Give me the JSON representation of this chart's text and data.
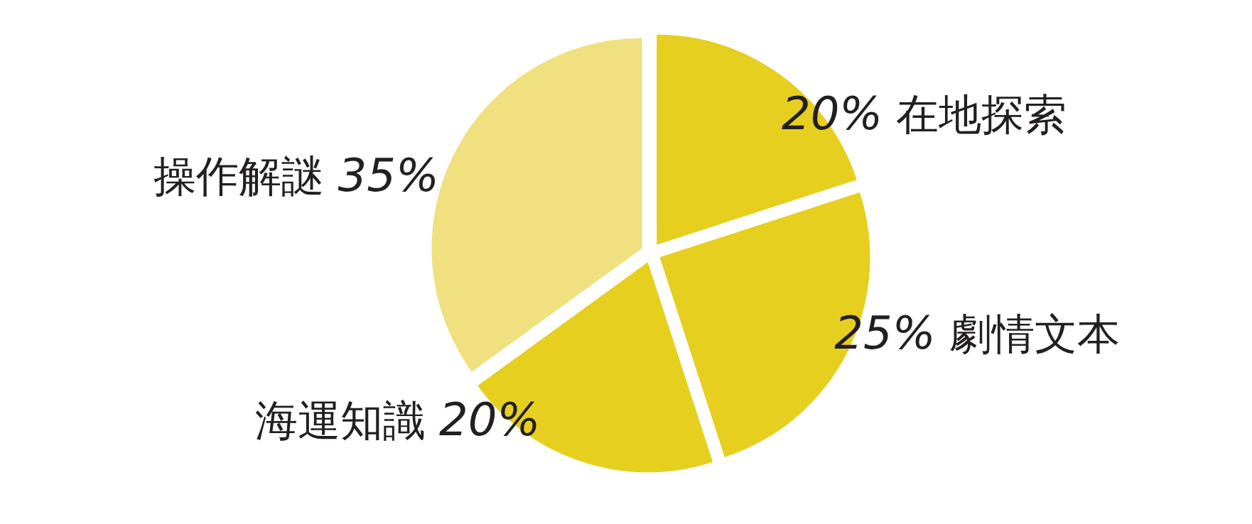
{
  "chart_data": {
    "type": "pie",
    "categories": [
      "在地探索",
      "劇情文本",
      "海運知識",
      "操作解謎"
    ],
    "values": [
      20,
      25,
      20,
      35
    ],
    "value_labels": [
      "20%",
      "25%",
      "20%",
      "35%"
    ],
    "colors": [
      "#e6cf1f",
      "#e6cf1f",
      "#e6cf1f",
      "#f0e07f"
    ]
  }
}
